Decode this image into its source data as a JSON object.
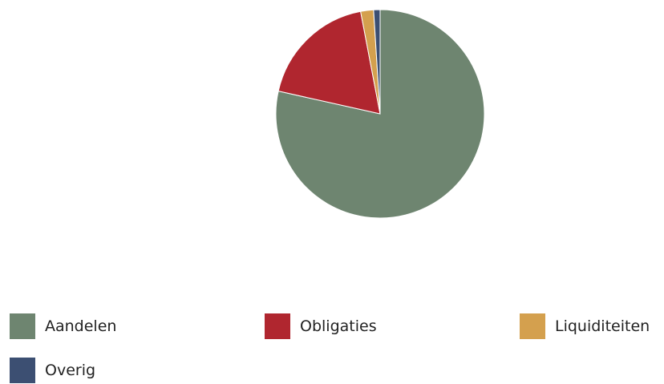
{
  "chart_data": {
    "type": "pie",
    "title": "",
    "categories": [
      "Aandelen",
      "Obligaties",
      "Liquiditeiten",
      "Overig"
    ],
    "values": [
      78.5,
      18.5,
      2.0,
      1.0
    ],
    "colors": [
      "#6e8570",
      "#b0262f",
      "#d4a04e",
      "#3c4f72"
    ],
    "start": "12 o'clock",
    "direction": "clockwise",
    "legend_placement": "bottom"
  },
  "legend": {
    "items": [
      {
        "label": "Aandelen",
        "color": "#6e8570"
      },
      {
        "label": "Obligaties",
        "color": "#b0262f"
      },
      {
        "label": "Liquiditeiten",
        "color": "#d4a04e"
      },
      {
        "label": "Overig",
        "color": "#3c4f72"
      }
    ]
  }
}
